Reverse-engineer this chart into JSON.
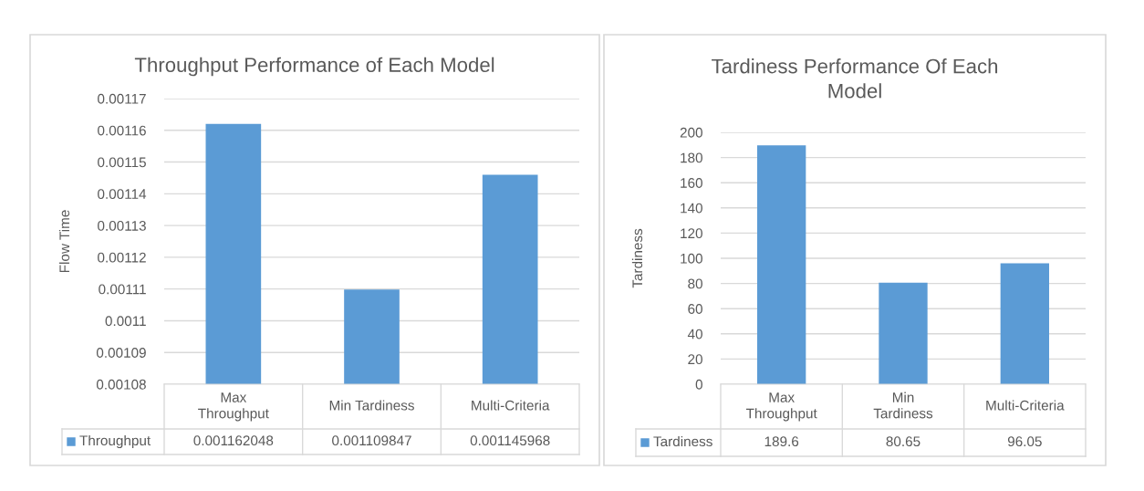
{
  "chart_data": [
    {
      "type": "bar",
      "title": "Throughput Performance of Each Model",
      "ylabel": "Flow Time",
      "categories": [
        "Max Throughput",
        "Min Tardiness",
        "Multi-Criteria"
      ],
      "series": [
        {
          "name": "Throughput",
          "color": "#5b9bd5",
          "values": [
            0.001162048,
            0.001109847,
            0.001145968
          ]
        }
      ],
      "ylim": [
        0.00108,
        0.00117
      ],
      "yticks": [
        0.00108,
        0.00109,
        0.0011,
        0.00111,
        0.00112,
        0.00113,
        0.00114,
        0.00115,
        0.00116,
        0.00117
      ],
      "grid": "y",
      "legend": "bottom",
      "data_labels": true
    },
    {
      "type": "bar",
      "title": "Tardiness Performance Of Each Model",
      "ylabel": "Tardiness",
      "categories": [
        "Max Throughput",
        "Min Tardiness",
        "Multi-Criteria"
      ],
      "series": [
        {
          "name": "Tardiness",
          "color": "#5b9bd5",
          "values": [
            189.6,
            80.65,
            96.05
          ]
        }
      ],
      "ylim": [
        0,
        200
      ],
      "yticks": [
        0,
        20,
        40,
        60,
        80,
        100,
        120,
        140,
        160,
        180,
        200
      ],
      "grid": "y",
      "legend": "bottom",
      "data_labels": true
    }
  ]
}
